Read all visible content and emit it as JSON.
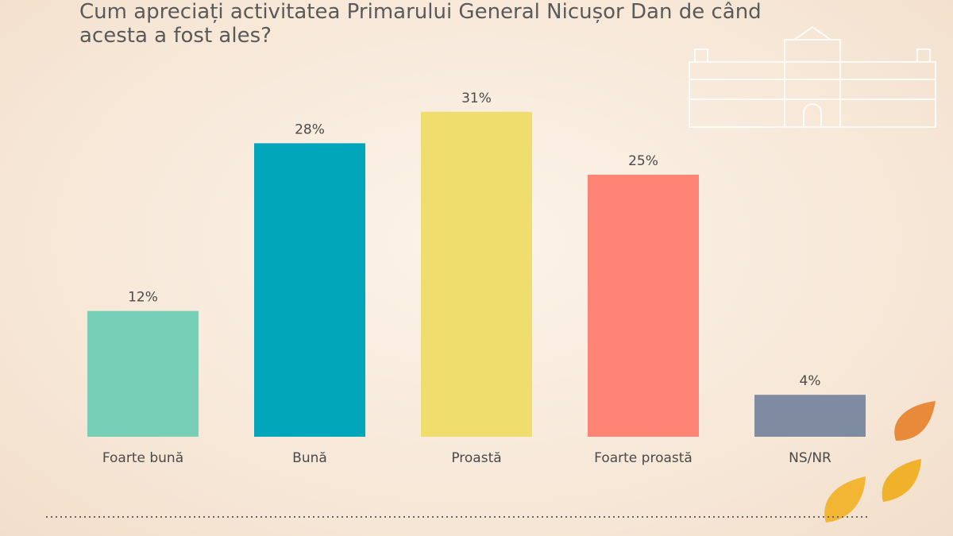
{
  "chart_data": {
    "type": "bar",
    "title": "Cum apreciați activitatea Primarului General Nicușor Dan de când acesta a fost ales?",
    "categories": [
      "Foarte bună",
      "Bună",
      "Proastă",
      "Foarte proastă",
      "NS/NR"
    ],
    "values": [
      12,
      28,
      31,
      25,
      4
    ],
    "value_labels": [
      "12%",
      "28%",
      "31%",
      "25%",
      "4%"
    ],
    "colors": [
      "#76cfb6",
      "#02a6ba",
      "#efdd6e",
      "#fe8476",
      "#7e8ba0"
    ]
  }
}
